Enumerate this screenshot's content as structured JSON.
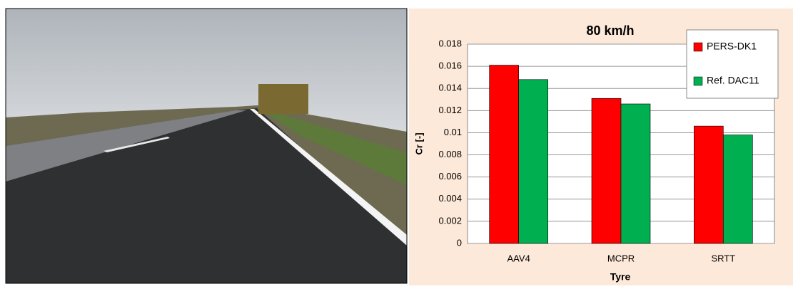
{
  "chart_data": {
    "type": "bar",
    "title": "80 km/h",
    "y_label": "Cr [-]",
    "x_label": "Tyre",
    "categories": [
      "AAV4",
      "MCPR",
      "SRTT"
    ],
    "series": [
      {
        "name": "PERS-DK1",
        "color": "#ff0000",
        "values": [
          0.0161,
          0.0131,
          0.0106
        ]
      },
      {
        "name": "Ref. DAC11",
        "color": "#00b050",
        "values": [
          0.0148,
          0.0126,
          0.0098
        ]
      }
    ],
    "ylim": [
      0,
      0.018
    ],
    "yticks": [
      0,
      0.002,
      0.004,
      0.006,
      0.008,
      0.01,
      0.012,
      0.014,
      0.016,
      0.018
    ],
    "grid": true,
    "legend": "top-right"
  }
}
